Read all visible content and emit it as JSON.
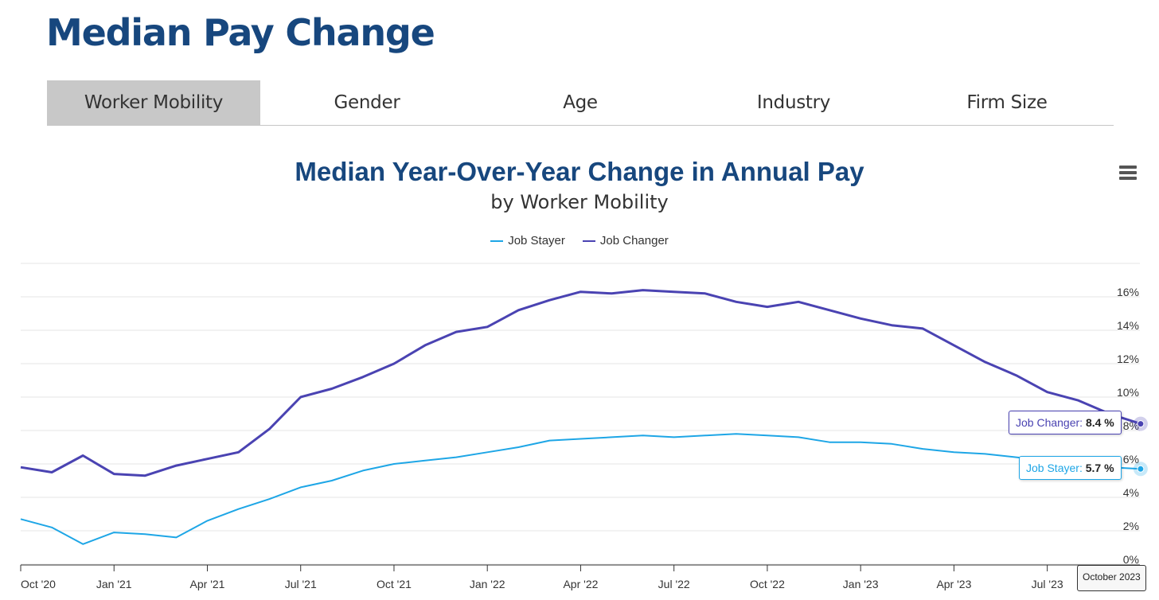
{
  "page": {
    "title": "Median Pay Change"
  },
  "tabs": [
    {
      "label": "Worker Mobility",
      "active": true
    },
    {
      "label": "Gender",
      "active": false
    },
    {
      "label": "Age",
      "active": false
    },
    {
      "label": "Industry",
      "active": false
    },
    {
      "label": "Firm Size",
      "active": false
    }
  ],
  "icons": {
    "menu": "hamburger-menu-icon"
  },
  "colors": {
    "job_stayer": "#1ea6e6",
    "job_changer": "#4a43b2",
    "title": "#17477e",
    "active_tab": "#c8c8c8"
  },
  "tooltip": {
    "changer": {
      "name": "Job Changer",
      "value": "8.4 %"
    },
    "stayer": {
      "name": "Job Stayer",
      "value": "5.7 %"
    },
    "date": "October 2023"
  },
  "chart_data": {
    "type": "line",
    "title": "Median Year-Over-Year Change in Annual Pay",
    "subtitle": "by Worker Mobility",
    "legend_position": "top-center",
    "grid": true,
    "y_axis_side": "right",
    "ylim": [
      0,
      18
    ],
    "yticks": [
      0,
      2,
      4,
      6,
      8,
      10,
      12,
      14,
      16
    ],
    "ytick_labels": [
      "0%",
      "2%",
      "4%",
      "6%",
      "8%",
      "10%",
      "12%",
      "14%",
      "16%"
    ],
    "xtick_labels": [
      "Oct '20",
      "Jan '21",
      "Apr '21",
      "Jul '21",
      "Oct '21",
      "Jan '22",
      "Apr '22",
      "Jul '22",
      "Oct '22",
      "Jan '23",
      "Apr '23",
      "Jul '23"
    ],
    "x": [
      "Oct 2020",
      "Nov 2020",
      "Dec 2020",
      "Jan 2021",
      "Feb 2021",
      "Mar 2021",
      "Apr 2021",
      "May 2021",
      "Jun 2021",
      "Jul 2021",
      "Aug 2021",
      "Sep 2021",
      "Oct 2021",
      "Nov 2021",
      "Dec 2021",
      "Jan 2022",
      "Feb 2022",
      "Mar 2022",
      "Apr 2022",
      "May 2022",
      "Jun 2022",
      "Jul 2022",
      "Aug 2022",
      "Sep 2022",
      "Oct 2022",
      "Nov 2022",
      "Dec 2022",
      "Jan 2023",
      "Feb 2023",
      "Mar 2023",
      "Apr 2023",
      "May 2023",
      "Jun 2023",
      "Jul 2023",
      "Aug 2023",
      "Sep 2023",
      "Oct 2023"
    ],
    "series": [
      {
        "name": "Job Stayer",
        "values": [
          2.7,
          2.2,
          1.2,
          1.9,
          1.8,
          1.6,
          2.6,
          3.3,
          3.9,
          4.6,
          5.0,
          5.6,
          6.0,
          6.2,
          6.4,
          6.7,
          7.0,
          7.4,
          7.5,
          7.6,
          7.7,
          7.6,
          7.7,
          7.8,
          7.7,
          7.6,
          7.3,
          7.3,
          7.2,
          6.9,
          6.7,
          6.6,
          6.4,
          6.2,
          6.0,
          5.8,
          5.7
        ]
      },
      {
        "name": "Job Changer",
        "values": [
          5.8,
          5.5,
          6.5,
          5.4,
          5.3,
          5.9,
          6.3,
          6.7,
          8.1,
          10.0,
          10.5,
          11.2,
          12.0,
          13.1,
          13.9,
          14.2,
          15.2,
          15.8,
          16.3,
          16.2,
          16.4,
          16.3,
          16.2,
          15.7,
          15.4,
          15.7,
          15.2,
          14.7,
          14.3,
          14.1,
          13.1,
          12.1,
          11.3,
          10.3,
          9.8,
          9.0,
          8.4
        ]
      }
    ]
  }
}
